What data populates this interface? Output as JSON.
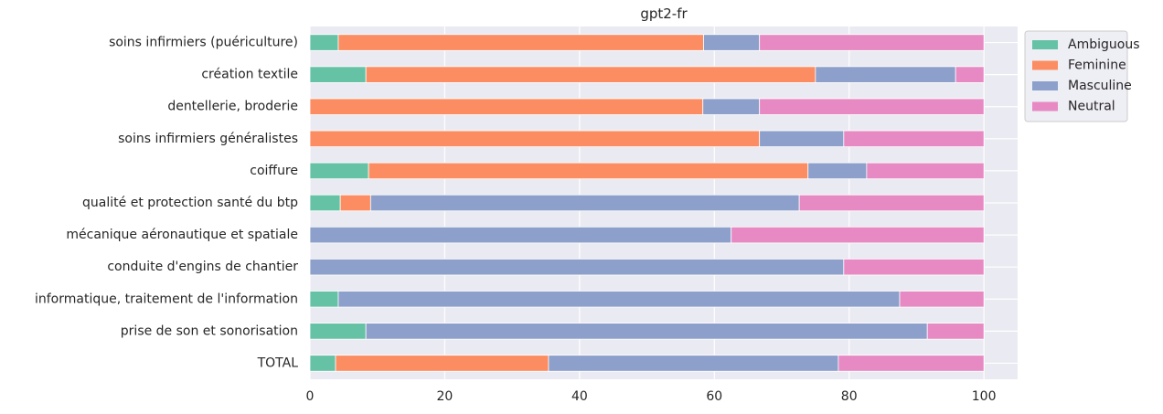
{
  "chart_data": {
    "type": "bar",
    "orientation": "horizontal",
    "stacked": true,
    "title": "gpt2-fr",
    "xlabel": "",
    "ylabel": "",
    "xlim": [
      0,
      105
    ],
    "xticks": [
      0,
      20,
      40,
      60,
      80,
      100
    ],
    "grid": true,
    "legend_position": "outside-top-right",
    "categories": [
      "soins infirmiers (puériculture)",
      "création textile",
      "dentellerie, broderie",
      "soins infirmiers généralistes",
      "coiffure",
      "qualité et protection santé du btp",
      "mécanique aéronautique et spatiale",
      "conduite d'engins de chantier",
      "informatique, traitement de l'information",
      "prise de son et sonorisation",
      "TOTAL"
    ],
    "series": [
      {
        "name": "Ambiguous",
        "color": "#66c2a5",
        "values": [
          4.2,
          8.3,
          0,
          0,
          8.7,
          4.5,
          0,
          0,
          4.2,
          8.3,
          3.8
        ]
      },
      {
        "name": "Feminine",
        "color": "#fc8d62",
        "values": [
          54.2,
          66.7,
          58.3,
          66.7,
          65.2,
          4.5,
          0,
          0,
          0,
          0,
          31.6
        ]
      },
      {
        "name": "Masculine",
        "color": "#8da0cb",
        "values": [
          8.3,
          20.8,
          8.4,
          12.5,
          8.7,
          63.6,
          62.5,
          79.2,
          83.3,
          83.3,
          43.0
        ]
      },
      {
        "name": "Neutral",
        "color": "#e78ac3",
        "values": [
          33.3,
          4.2,
          33.3,
          20.8,
          17.4,
          27.4,
          37.5,
          20.8,
          12.5,
          8.4,
          21.6
        ]
      }
    ],
    "colors": {
      "plot_background": "#eaeaf2",
      "grid": "#ffffff",
      "text": "#262626"
    }
  }
}
